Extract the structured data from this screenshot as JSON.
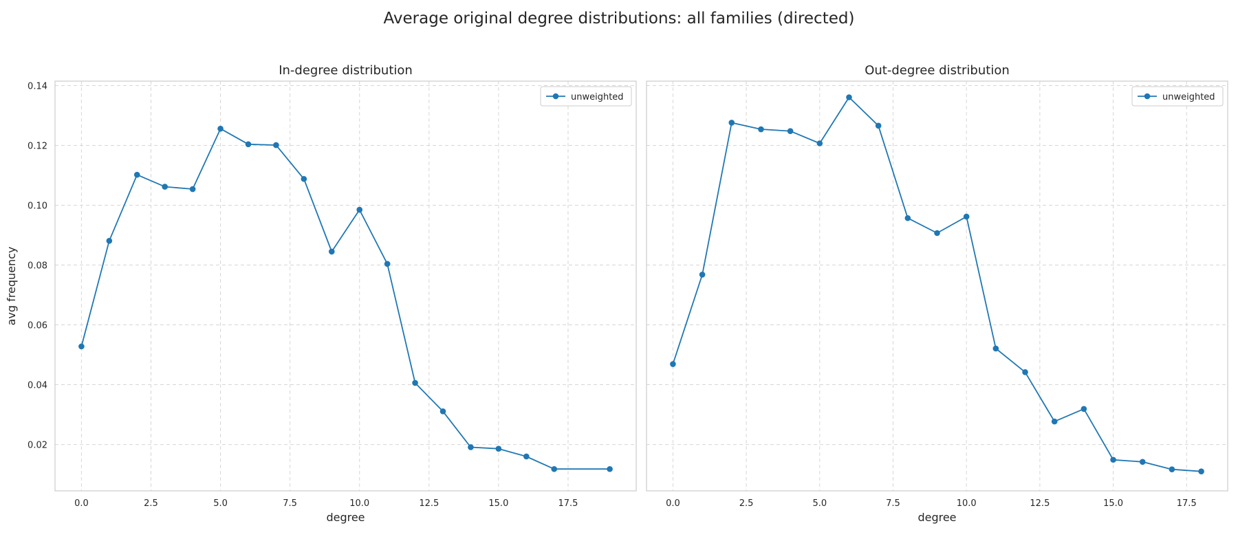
{
  "figure": {
    "suptitle": "Average original degree distributions: all families (directed)"
  },
  "colors": {
    "series": "#1f77b4",
    "grid": "#d6d6d6",
    "axes_edge": "#cccccc",
    "text": "#262626",
    "background": "#ffffff"
  },
  "chart_data": [
    {
      "type": "line",
      "title": "In-degree distribution",
      "xlabel": "degree",
      "ylabel": "avg frequency",
      "xlim": [
        -0.95,
        19.95
      ],
      "ylim": [
        0.0045,
        0.1415
      ],
      "xticks": [
        0.0,
        2.5,
        5.0,
        7.5,
        10.0,
        12.5,
        15.0,
        17.5
      ],
      "xtick_labels": [
        "0.0",
        "2.5",
        "5.0",
        "7.5",
        "10.0",
        "12.5",
        "15.0",
        "17.5"
      ],
      "yticks": [
        0.02,
        0.04,
        0.06,
        0.08,
        0.1,
        0.12,
        0.14
      ],
      "ytick_labels": [
        "0.02",
        "0.04",
        "0.06",
        "0.08",
        "0.10",
        "0.12",
        "0.14"
      ],
      "grid": true,
      "legend_position": "top-right",
      "marker": "circle",
      "series": [
        {
          "name": "unweighted",
          "x": [
            0,
            1,
            2,
            3,
            4,
            5,
            6,
            7,
            8,
            9,
            10,
            11,
            12,
            13,
            14,
            15,
            16,
            17,
            19
          ],
          "y": [
            0.0528,
            0.0881,
            0.1102,
            0.1062,
            0.1054,
            0.1256,
            0.1204,
            0.1201,
            0.1088,
            0.0845,
            0.0985,
            0.0804,
            0.0406,
            0.0311,
            0.0191,
            0.0186,
            0.016,
            0.0118,
            0.0118
          ]
        }
      ]
    },
    {
      "type": "line",
      "title": "Out-degree distribution",
      "xlabel": "degree",
      "ylabel": "",
      "xlim": [
        -0.9,
        18.9
      ],
      "ylim": [
        0.0045,
        0.1415
      ],
      "xticks": [
        0.0,
        2.5,
        5.0,
        7.5,
        10.0,
        12.5,
        15.0,
        17.5
      ],
      "xtick_labels": [
        "0.0",
        "2.5",
        "5.0",
        "7.5",
        "10.0",
        "12.5",
        "15.0",
        "17.5"
      ],
      "yticks": [
        0.02,
        0.04,
        0.06,
        0.08,
        0.1,
        0.12,
        0.14
      ],
      "ytick_labels": [],
      "grid": true,
      "legend_position": "top-right",
      "marker": "circle",
      "series": [
        {
          "name": "unweighted",
          "x": [
            0,
            1,
            2,
            3,
            4,
            5,
            6,
            7,
            8,
            9,
            10,
            11,
            12,
            13,
            14,
            15,
            16,
            17,
            18
          ],
          "y": [
            0.0469,
            0.0768,
            0.1276,
            0.1254,
            0.1248,
            0.1207,
            0.1361,
            0.1266,
            0.0957,
            0.0907,
            0.0962,
            0.0521,
            0.0442,
            0.0277,
            0.0319,
            0.0149,
            0.0142,
            0.0117,
            0.011
          ]
        }
      ]
    }
  ]
}
